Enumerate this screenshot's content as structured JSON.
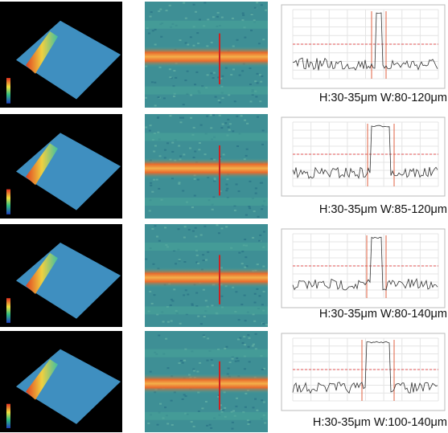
{
  "rows": [
    {
      "caption": "H:30-35μm W:80-120μm"
    },
    {
      "caption": "H:30-35μm W:85-120μm"
    },
    {
      "caption": "H:30-35μm W:80-140μm"
    },
    {
      "caption": "H:30-35μm W:100-140μm"
    }
  ]
}
